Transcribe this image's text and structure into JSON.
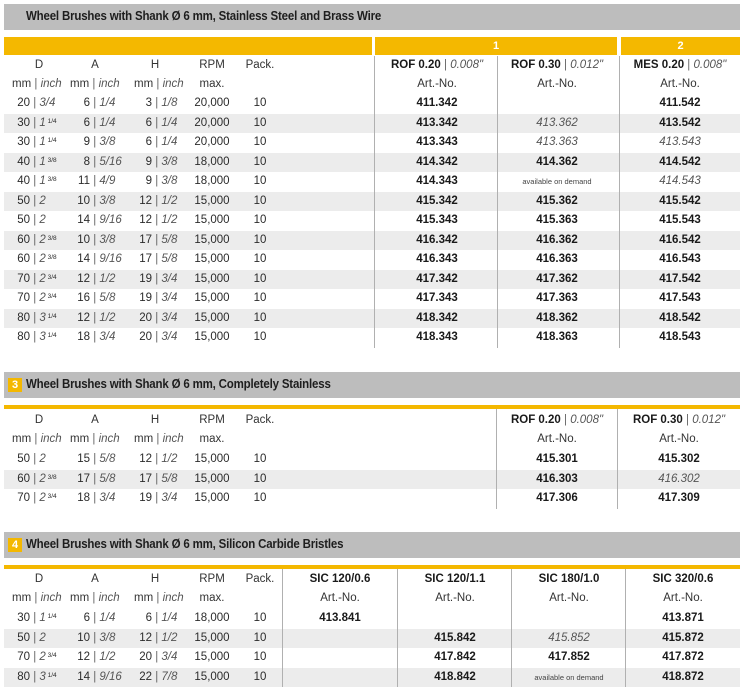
{
  "section1": {
    "title": "Wheel Brushes with Shank Ø 6 mm, Stainless Steel and Brass Wire",
    "group1_label": "1",
    "group2_label": "2",
    "headers": {
      "D": "D",
      "A": "A",
      "H": "H",
      "RPM": "RPM",
      "Pack": "Pack.",
      "mm": "mm",
      "inch": "inch",
      "max": "max.",
      "rof020": "ROF 0.20",
      "rof020_in": "0.008\"",
      "rof030": "ROF 0.30",
      "rof030_in": "0.012\"",
      "mes020": "MES 0.20",
      "mes020_in": "0.008\"",
      "artno": "Art.-No."
    },
    "rows": [
      {
        "d_mm": "20",
        "d_in": "3/4",
        "d_sup": "",
        "a_mm": "6",
        "a_in": "1/4",
        "h_mm": "3",
        "h_in": "1/8",
        "rpm": "20,000",
        "pack": "10",
        "rof020": "411.342",
        "rof030": "",
        "rof030_style": "",
        "mes020": "411.542",
        "mes020_style": "b"
      },
      {
        "d_mm": "30",
        "d_in": "1",
        "d_sup": "1/4",
        "a_mm": "6",
        "a_in": "1/4",
        "h_mm": "6",
        "h_in": "1/4",
        "rpm": "20,000",
        "pack": "10",
        "rof020": "413.342",
        "rof030": "413.362",
        "rof030_style": "i",
        "mes020": "413.542",
        "mes020_style": "b"
      },
      {
        "d_mm": "30",
        "d_in": "1",
        "d_sup": "1/4",
        "a_mm": "9",
        "a_in": "3/8",
        "h_mm": "6",
        "h_in": "1/4",
        "rpm": "20,000",
        "pack": "10",
        "rof020": "413.343",
        "rof030": "413.363",
        "rof030_style": "i",
        "mes020": "413.543",
        "mes020_style": "i"
      },
      {
        "d_mm": "40",
        "d_in": "1",
        "d_sup": "3/8",
        "a_mm": "8",
        "a_in": "5/16",
        "h_mm": "9",
        "h_in": "3/8",
        "rpm": "18,000",
        "pack": "10",
        "rof020": "414.342",
        "rof030": "414.362",
        "rof030_style": "b",
        "mes020": "414.542",
        "mes020_style": "b"
      },
      {
        "d_mm": "40",
        "d_in": "1",
        "d_sup": "3/8",
        "a_mm": "11",
        "a_in": "4/9",
        "h_mm": "9",
        "h_in": "3/8",
        "rpm": "18,000",
        "pack": "10",
        "rof020": "414.343",
        "rof030": "available on demand",
        "rof030_style": "sm",
        "mes020": "414.543",
        "mes020_style": "i"
      },
      {
        "d_mm": "50",
        "d_in": "2",
        "d_sup": "",
        "a_mm": "10",
        "a_in": "3/8",
        "h_mm": "12",
        "h_in": "1/2",
        "rpm": "15,000",
        "pack": "10",
        "rof020": "415.342",
        "rof030": "415.362",
        "rof030_style": "b",
        "mes020": "415.542",
        "mes020_style": "b"
      },
      {
        "d_mm": "50",
        "d_in": "2",
        "d_sup": "",
        "a_mm": "14",
        "a_in": "9/16",
        "h_mm": "12",
        "h_in": "1/2",
        "rpm": "15,000",
        "pack": "10",
        "rof020": "415.343",
        "rof030": "415.363",
        "rof030_style": "b",
        "mes020": "415.543",
        "mes020_style": "b"
      },
      {
        "d_mm": "60",
        "d_in": "2",
        "d_sup": "3/8",
        "a_mm": "10",
        "a_in": "3/8",
        "h_mm": "17",
        "h_in": "5/8",
        "rpm": "15,000",
        "pack": "10",
        "rof020": "416.342",
        "rof030": "416.362",
        "rof030_style": "b",
        "mes020": "416.542",
        "mes020_style": "b"
      },
      {
        "d_mm": "60",
        "d_in": "2",
        "d_sup": "3/8",
        "a_mm": "14",
        "a_in": "9/16",
        "h_mm": "17",
        "h_in": "5/8",
        "rpm": "15,000",
        "pack": "10",
        "rof020": "416.343",
        "rof030": "416.363",
        "rof030_style": "b",
        "mes020": "416.543",
        "mes020_style": "b"
      },
      {
        "d_mm": "70",
        "d_in": "2",
        "d_sup": "3/4",
        "a_mm": "12",
        "a_in": "1/2",
        "h_mm": "19",
        "h_in": "3/4",
        "rpm": "15,000",
        "pack": "10",
        "rof020": "417.342",
        "rof030": "417.362",
        "rof030_style": "b",
        "mes020": "417.542",
        "mes020_style": "b"
      },
      {
        "d_mm": "70",
        "d_in": "2",
        "d_sup": "3/4",
        "a_mm": "16",
        "a_in": "5/8",
        "h_mm": "19",
        "h_in": "3/4",
        "rpm": "15,000",
        "pack": "10",
        "rof020": "417.343",
        "rof030": "417.363",
        "rof030_style": "b",
        "mes020": "417.543",
        "mes020_style": "b"
      },
      {
        "d_mm": "80",
        "d_in": "3",
        "d_sup": "1/4",
        "a_mm": "12",
        "a_in": "1/2",
        "h_mm": "20",
        "h_in": "3/4",
        "rpm": "15,000",
        "pack": "10",
        "rof020": "418.342",
        "rof030": "418.362",
        "rof030_style": "b",
        "mes020": "418.542",
        "mes020_style": "b"
      },
      {
        "d_mm": "80",
        "d_in": "3",
        "d_sup": "1/4",
        "a_mm": "18",
        "a_in": "3/4",
        "h_mm": "20",
        "h_in": "3/4",
        "rpm": "15,000",
        "pack": "10",
        "rof020": "418.343",
        "rof030": "418.363",
        "rof030_style": "b",
        "mes020": "418.543",
        "mes020_style": "b"
      }
    ]
  },
  "section3": {
    "number": "3",
    "title": "Wheel Brushes with Shank Ø 6 mm, Completely Stainless",
    "headers": {
      "rof020": "ROF 0.20",
      "rof020_in": "0.008\"",
      "rof030": "ROF 0.30",
      "rof030_in": "0.012\"",
      "artno": "Art.-No."
    },
    "rows": [
      {
        "d_mm": "50",
        "d_in": "2",
        "d_sup": "",
        "a_mm": "15",
        "a_in": "5/8",
        "h_mm": "12",
        "h_in": "1/2",
        "rpm": "15,000",
        "pack": "10",
        "rof020": "415.301",
        "rof030": "415.302",
        "rof030_style": "b"
      },
      {
        "d_mm": "60",
        "d_in": "2",
        "d_sup": "3/8",
        "a_mm": "17",
        "a_in": "5/8",
        "h_mm": "17",
        "h_in": "5/8",
        "rpm": "15,000",
        "pack": "10",
        "rof020": "416.303",
        "rof030": "416.302",
        "rof030_style": "i"
      },
      {
        "d_mm": "70",
        "d_in": "2",
        "d_sup": "3/4",
        "a_mm": "18",
        "a_in": "3/4",
        "h_mm": "19",
        "h_in": "3/4",
        "rpm": "15,000",
        "pack": "10",
        "rof020": "417.306",
        "rof030": "417.309",
        "rof030_style": "b"
      }
    ]
  },
  "section4": {
    "number": "4",
    "title": "Wheel Brushes with Shank Ø 6 mm, Silicon Carbide Bristles",
    "headers": {
      "sic1": "SIC 120/0.6",
      "sic2": "SIC 120/1.1",
      "sic3": "SIC 180/1.0",
      "sic4": "SIC 320/0.6",
      "artno": "Art.-No."
    },
    "rows": [
      {
        "d_mm": "30",
        "d_in": "1",
        "d_sup": "1/4",
        "a_mm": "6",
        "a_in": "1/4",
        "h_mm": "6",
        "h_in": "1/4",
        "rpm": "18,000",
        "pack": "10",
        "sic1": "413.841",
        "sic2": "",
        "sic2_style": "",
        "sic3": "",
        "sic3_style": "",
        "sic4": "413.871"
      },
      {
        "d_mm": "50",
        "d_in": "2",
        "d_sup": "",
        "a_mm": "10",
        "a_in": "3/8",
        "h_mm": "12",
        "h_in": "1/2",
        "rpm": "15,000",
        "pack": "10",
        "sic1": "",
        "sic2": "415.842",
        "sic2_style": "b",
        "sic3": "415.852",
        "sic3_style": "i",
        "sic4": "415.872"
      },
      {
        "d_mm": "70",
        "d_in": "2",
        "d_sup": "3/4",
        "a_mm": "12",
        "a_in": "1/2",
        "h_mm": "20",
        "h_in": "3/4",
        "rpm": "15,000",
        "pack": "10",
        "sic1": "",
        "sic2": "417.842",
        "sic2_style": "b",
        "sic3": "417.852",
        "sic3_style": "b",
        "sic4": "417.872"
      },
      {
        "d_mm": "80",
        "d_in": "3",
        "d_sup": "1/4",
        "a_mm": "14",
        "a_in": "9/16",
        "h_mm": "22",
        "h_in": "7/8",
        "rpm": "15,000",
        "pack": "10",
        "sic1": "",
        "sic2": "418.842",
        "sic2_style": "b",
        "sic3": "available on demand",
        "sic3_style": "sm",
        "sic4": "418.872"
      }
    ]
  }
}
